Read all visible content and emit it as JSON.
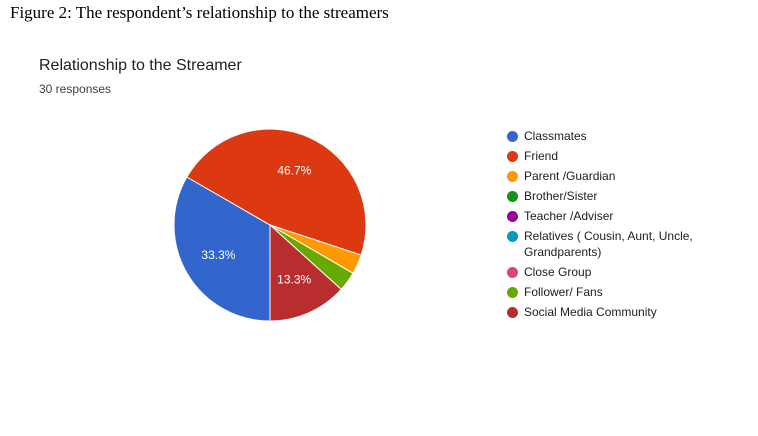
{
  "figure_caption": "Figure 2: The respondent’s relationship to the streamers",
  "chart_data": {
    "type": "pie",
    "title": "Relationship to the Streamer",
    "subtitle": "30 responses",
    "legend_position": "right",
    "slices": [
      {
        "label": "Classmates",
        "value": 33.3,
        "display": "33.3%",
        "color": "#3366cc"
      },
      {
        "label": "Friend",
        "value": 46.7,
        "display": "46.7%",
        "color": "#dc3912"
      },
      {
        "label": "Parent /Guardian",
        "value": 3.3,
        "display": "",
        "color": "#ff9900"
      },
      {
        "label": "Brother/Sister",
        "value": 0,
        "display": "",
        "color": "#109618"
      },
      {
        "label": "Teacher /Adviser",
        "value": 0,
        "display": "",
        "color": "#990099"
      },
      {
        "label": "Relatives ( Cousin, Aunt, Uncle, Grandparents)",
        "value": 0,
        "display": "",
        "color": "#0099c6"
      },
      {
        "label": "Close Group",
        "value": 0,
        "display": "",
        "color": "#dd4477"
      },
      {
        "label": "Follower/ Fans",
        "value": 3.3,
        "display": "",
        "color": "#66aa00"
      },
      {
        "label": "Social Media Community",
        "value": 13.3,
        "display": "13.3%",
        "color": "#b82e2e"
      }
    ]
  }
}
